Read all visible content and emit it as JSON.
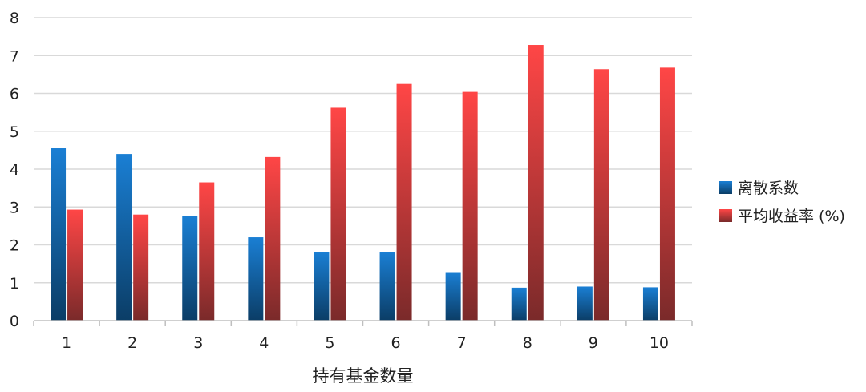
{
  "chart_data": {
    "type": "bar",
    "title": "",
    "xlabel": "持有基金数量",
    "ylabel": "",
    "ylim": [
      0,
      8
    ],
    "yticks": [
      "0",
      "1",
      "2",
      "3",
      "4",
      "5",
      "6",
      "7",
      "8"
    ],
    "categories": [
      "1",
      "2",
      "3",
      "4",
      "5",
      "6",
      "7",
      "8",
      "9",
      "10"
    ],
    "grid": true,
    "legend_position": "right",
    "series": [
      {
        "name": "离散系数",
        "color_top": "#1a7fd4",
        "color_bottom": "#0b3d66",
        "values": [
          4.55,
          4.4,
          2.77,
          2.2,
          1.82,
          1.82,
          1.28,
          0.87,
          0.9,
          0.88
        ]
      },
      {
        "name": "平均收益率 (%)",
        "color_top": "#ff4646",
        "color_bottom": "#7a2a2a",
        "values": [
          2.93,
          2.8,
          3.65,
          4.32,
          5.62,
          6.25,
          6.04,
          7.28,
          6.64,
          6.68
        ]
      }
    ]
  }
}
